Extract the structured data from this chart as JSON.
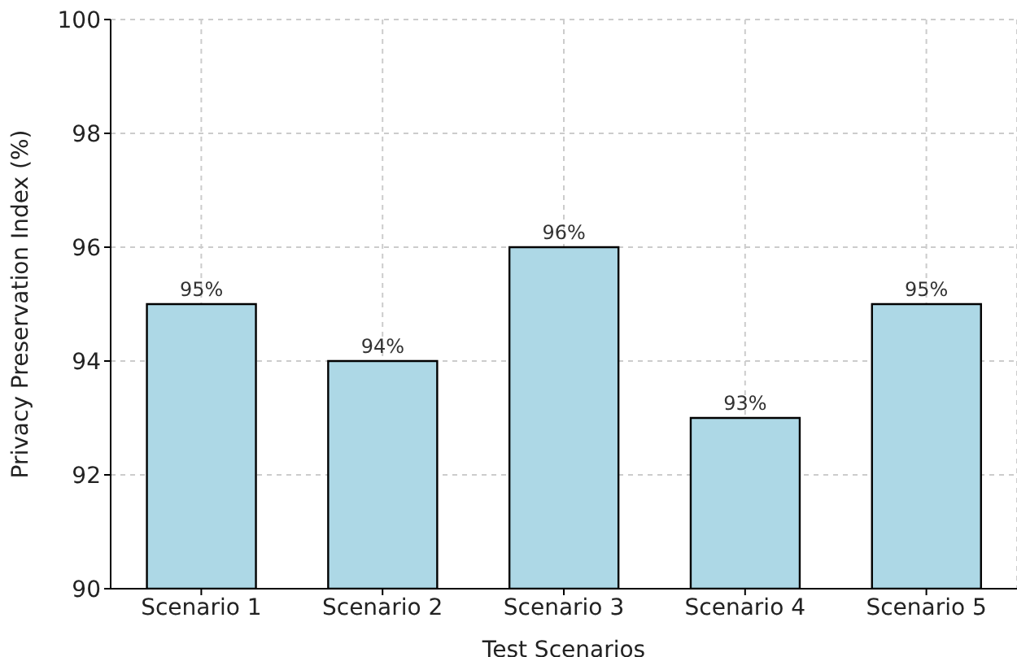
{
  "chart_data": {
    "type": "bar",
    "xlabel": "Test Scenarios",
    "ylabel": "Privacy Preservation Index (%)",
    "categories": [
      "Scenario 1",
      "Scenario 2",
      "Scenario 3",
      "Scenario 4",
      "Scenario 5"
    ],
    "values": [
      95,
      94,
      96,
      93,
      95
    ],
    "value_labels": [
      "95%",
      "94%",
      "96%",
      "93%",
      "95%"
    ],
    "color": "#add8e6",
    "ylim": [
      90,
      100
    ],
    "yticks": [
      90,
      92,
      94,
      96,
      98,
      100
    ],
    "grid": true
  }
}
